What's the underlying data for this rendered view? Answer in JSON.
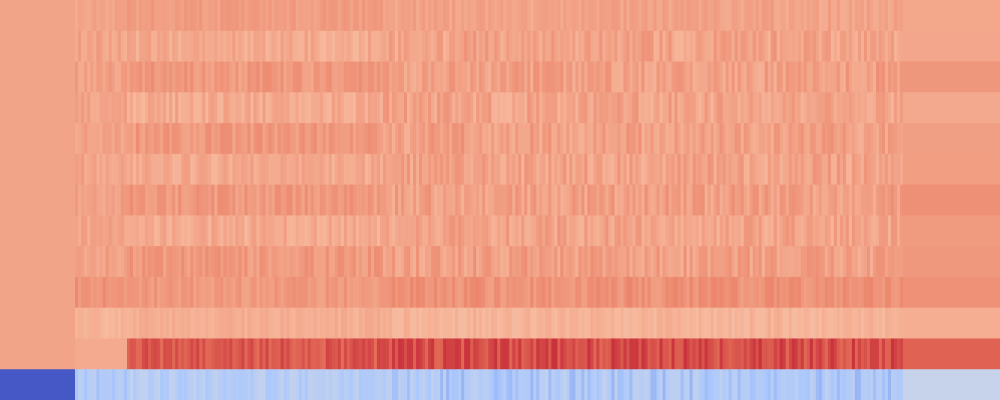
{
  "chart_data": {
    "type": "heatmap",
    "colormap": "coolwarm",
    "colormap_stops": [
      "#3b4cc0",
      "#aac7fd",
      "#dddddd",
      "#f7b89c",
      "#e7745b",
      "#b40426"
    ],
    "value_range": [
      0,
      1
    ],
    "rows": [
      {
        "base": 0.66,
        "jitter": 0.03
      },
      {
        "base": 0.66,
        "jitter": 0.05
      },
      {
        "base": 0.67,
        "jitter": 0.05
      },
      {
        "base": 0.66,
        "jitter": 0.05
      },
      {
        "base": 0.67,
        "jitter": 0.05
      },
      {
        "base": 0.66,
        "jitter": 0.05
      },
      {
        "base": 0.67,
        "jitter": 0.05
      },
      {
        "base": 0.66,
        "jitter": 0.05
      },
      {
        "base": 0.67,
        "jitter": 0.05
      },
      {
        "base": 0.71,
        "jitter": 0.04
      },
      {
        "base": 0.61,
        "jitter": 0.03
      },
      {
        "base": 0.87,
        "jitter": 0.05
      },
      {
        "base": 0.23,
        "jitter": 0.06
      }
    ],
    "columns": [
      {
        "weight": 0.075,
        "profile": "edge"
      },
      {
        "weight": 0.052,
        "profile": "light"
      },
      {
        "weight": 0.256,
        "profile": "bands"
      },
      {
        "weight": 0.52,
        "profile": "dense"
      },
      {
        "weight": 0.097,
        "profile": "edge2"
      }
    ],
    "title": "",
    "xlabel": "",
    "ylabel": "",
    "grid": false,
    "legend": "none"
  }
}
